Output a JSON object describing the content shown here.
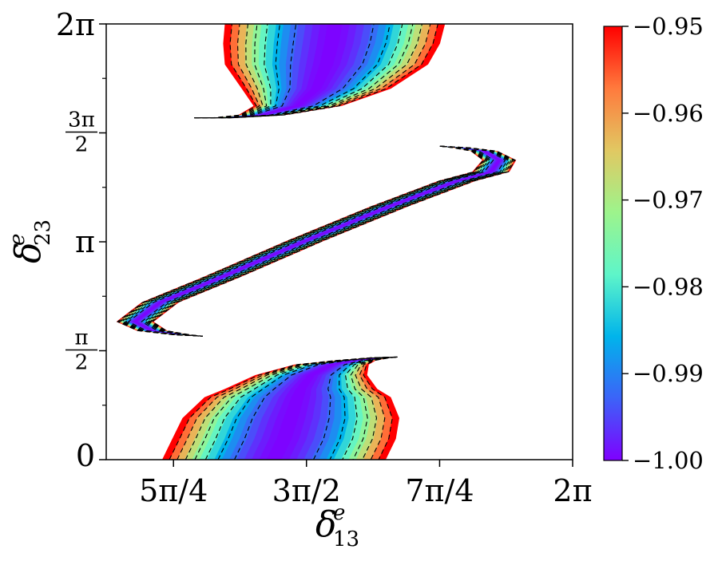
{
  "chart_data": {
    "type": "heatmap",
    "title": "",
    "xlabel": "δ",
    "xlabel_sup": "e",
    "xlabel_sub": "13",
    "ylabel": "δ",
    "ylabel_sup": "e",
    "ylabel_sub": "23",
    "x_units": "radians",
    "y_units": "radians",
    "xlim": [
      3.53,
      6.2832
    ],
    "ylim": [
      0,
      6.2832
    ],
    "x_ticks": [
      {
        "value": 3.927,
        "label": "5π/4"
      },
      {
        "value": 4.712,
        "label": "3π/2"
      },
      {
        "value": 5.498,
        "label": "7π/4"
      },
      {
        "value": 6.2832,
        "label": "2π"
      }
    ],
    "y_ticks": [
      {
        "value": 0,
        "label": "0",
        "frac": false
      },
      {
        "value": 1.5708,
        "num": "π",
        "den": "2",
        "frac": true
      },
      {
        "value": 3.1416,
        "label": "π",
        "frac": false
      },
      {
        "value": 4.7124,
        "num": "3π",
        "den": "2",
        "frac": true
      },
      {
        "value": 6.2832,
        "label": "2π",
        "frac": false
      }
    ],
    "y_minor_ticks": [
      0.785,
      2.356,
      3.927,
      5.498
    ],
    "colorbar": {
      "colormap": "rainbow",
      "min": -1.0,
      "max": -0.95,
      "tick_values": [
        -1.0,
        -0.99,
        -0.98,
        -0.97,
        -0.96,
        -0.95
      ],
      "tick_labels": [
        "−1.00",
        "−0.99",
        "−0.98",
        "−0.97",
        "−0.96",
        "−0.95"
      ],
      "colors": [
        "#7f00ff",
        "#3c63f8",
        "#00b4eb",
        "#5ef5c9",
        "#9df48c",
        "#e1c862",
        "#ff7a3d",
        "#ff0000"
      ]
    },
    "contours": {
      "style": "dashed",
      "color": "#000000",
      "levels_between_min_and_max": 7
    },
    "regions": [
      {
        "name": "lower-band",
        "spine_x": [
          4.52,
          4.58,
          4.62,
          4.66,
          4.68,
          4.74,
          4.86,
          5.0,
          5.15,
          5.25
        ],
        "spine_y": [
          0.0,
          0.3,
          0.6,
          0.9,
          1.02,
          1.22,
          1.37,
          1.43,
          1.47,
          1.48
        ],
        "width_x": [
          0.66,
          0.66,
          0.64,
          0.55,
          0.45,
          0.33,
          0.22,
          0.12,
          0.06,
          0.0
        ]
      },
      {
        "name": "middle-band",
        "spine_x": [
          5.5,
          5.62,
          5.76,
          5.85,
          5.8,
          5.6,
          5.2,
          4.7,
          4.2,
          3.85,
          3.7,
          3.8,
          3.98,
          4.1
        ],
        "spine_y": [
          4.52,
          4.5,
          4.45,
          4.32,
          4.15,
          4.02,
          3.65,
          3.15,
          2.62,
          2.27,
          1.99,
          1.86,
          1.8,
          1.78
        ],
        "width_x": [
          0.0,
          0.05,
          0.08,
          0.1,
          0.11,
          0.11,
          0.11,
          0.11,
          0.11,
          0.11,
          0.11,
          0.09,
          0.05,
          0.0
        ]
      },
      {
        "name": "upper-band",
        "spine_x": [
          4.05,
          4.22,
          4.45,
          4.66,
          4.77,
          4.83,
          4.86,
          4.88
        ],
        "spine_y": [
          4.93,
          4.93,
          4.97,
          5.1,
          5.35,
          5.7,
          6.0,
          6.2832
        ],
        "width_x": [
          0.0,
          0.06,
          0.14,
          0.26,
          0.44,
          0.6,
          0.64,
          0.65
        ]
      }
    ]
  }
}
